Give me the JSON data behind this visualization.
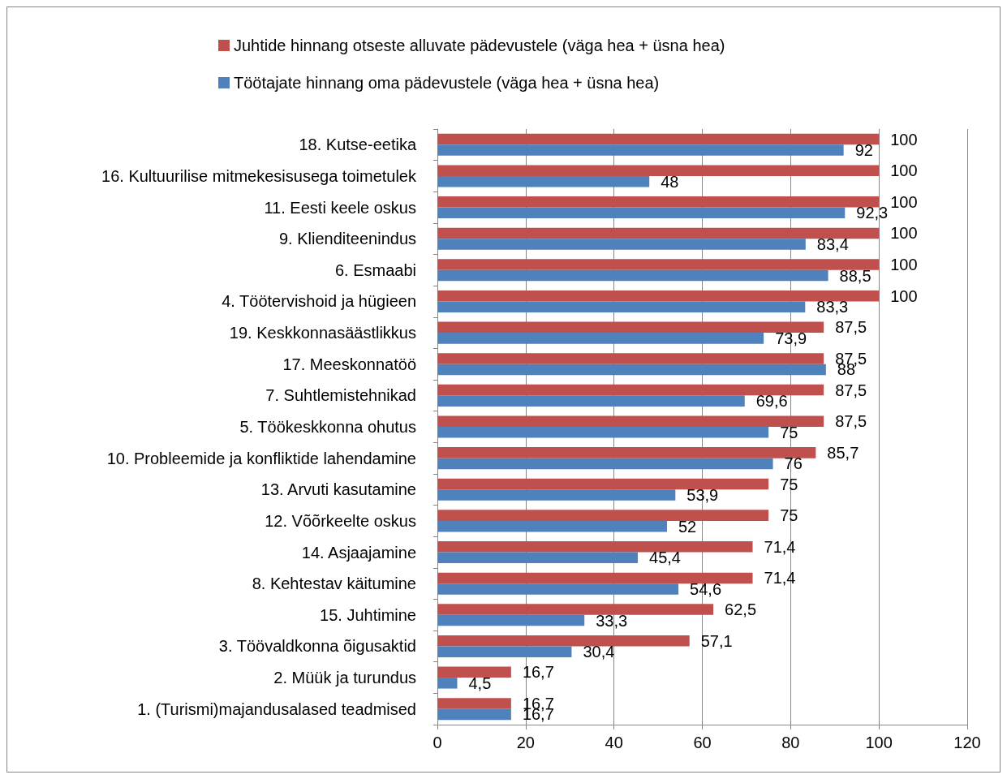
{
  "chart_data": {
    "type": "bar",
    "orientation": "horizontal",
    "legend": "top",
    "grid": "x",
    "xlim": [
      0,
      120
    ],
    "xticks": [
      0,
      20,
      40,
      60,
      80,
      100,
      120
    ],
    "categories": [
      "18. Kutse-eetika",
      "16. Kultuurilise mitmekesisusega toimetulek",
      "11. Eesti keele oskus",
      "9. Klienditeenindus",
      "6. Esmaabi",
      "4. Töötervishoid ja hügieen",
      "19. Keskkonnasäästlikkus",
      "17. Meeskonnatöö",
      "7. Suhtlemistehnikad",
      "5. Töökeskkonna ohutus",
      "10. Probleemide ja konfliktide lahendamine",
      "13. Arvuti kasutamine",
      "12. Võõrkeelte oskus",
      "14. Asjaajamine",
      "8. Kehtestav käitumine",
      "15. Juhtimine",
      "3. Töövaldkonna õigusaktid",
      "2. Müük ja turundus",
      "1. (Turismi)majandusalased teadmised"
    ],
    "series": [
      {
        "name": "Juhtide hinnang otseste alluvate pädevustele (väga hea + üsna hea)",
        "color": "#c0504d",
        "values": [
          100,
          100,
          100,
          100,
          100,
          100,
          87.5,
          87.5,
          87.5,
          87.5,
          85.7,
          75,
          75,
          71.4,
          71.4,
          62.5,
          57.1,
          16.7,
          16.7
        ],
        "value_labels": [
          "100",
          "100",
          "100",
          "100",
          "100",
          "100",
          "87,5",
          "87,5",
          "87,5",
          "87,5",
          "85,7",
          "75",
          "75",
          "71,4",
          "71,4",
          "62,5",
          "57,1",
          "16,7",
          "16,7"
        ]
      },
      {
        "name": "Töötajate hinnang oma pädevustele (väga hea + üsna hea)",
        "color": "#4f81bd",
        "values": [
          92,
          48,
          92.3,
          83.4,
          88.5,
          83.3,
          73.9,
          88,
          69.6,
          75,
          76,
          53.9,
          52,
          45.4,
          54.6,
          33.3,
          30.4,
          4.5,
          16.7
        ],
        "value_labels": [
          "92",
          "48",
          "92,3",
          "83,4",
          "88,5",
          "83,3",
          "73,9",
          "88",
          "69,6",
          "75",
          "76",
          "53,9",
          "52",
          "45,4",
          "54,6",
          "33,3",
          "30,4",
          "4,5",
          "16,7"
        ]
      }
    ]
  }
}
